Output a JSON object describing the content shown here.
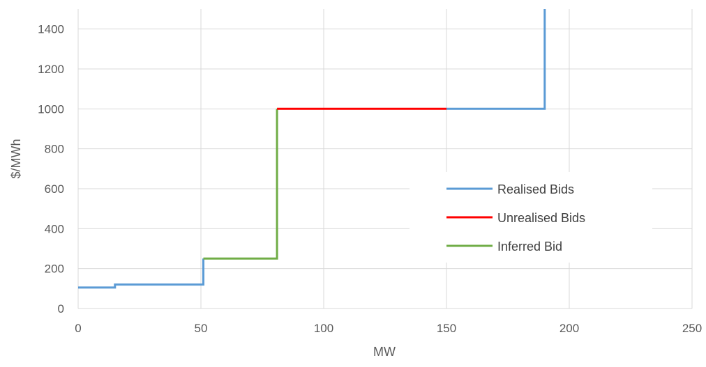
{
  "chart_data": {
    "type": "line",
    "title": "",
    "xlabel": "MW",
    "ylabel": "$/MWh",
    "xlim": [
      0,
      250
    ],
    "ylim": [
      0,
      1500
    ],
    "xticks": [
      0,
      50,
      100,
      150,
      200,
      250
    ],
    "yticks": [
      0,
      200,
      400,
      600,
      800,
      1000,
      1200,
      1400
    ],
    "grid": true,
    "legend_position": "right",
    "series": [
      {
        "name": "Realised Bids",
        "color": "#5b9bd5",
        "segments": [
          [
            [
              0,
              105
            ],
            [
              15,
              105
            ],
            [
              15,
              120
            ],
            [
              51,
              120
            ],
            [
              51,
              250
            ]
          ],
          [
            [
              150,
              1000
            ],
            [
              190,
              1000
            ],
            [
              190,
              1500
            ]
          ]
        ]
      },
      {
        "name": "Unrealised Bids",
        "color": "#ff0000",
        "segments": [
          [
            [
              81,
              1000
            ],
            [
              150,
              1000
            ]
          ]
        ]
      },
      {
        "name": "Inferred Bid",
        "color": "#70ad47",
        "segments": [
          [
            [
              51,
              250
            ],
            [
              81,
              250
            ],
            [
              81,
              1000
            ]
          ]
        ]
      }
    ]
  }
}
